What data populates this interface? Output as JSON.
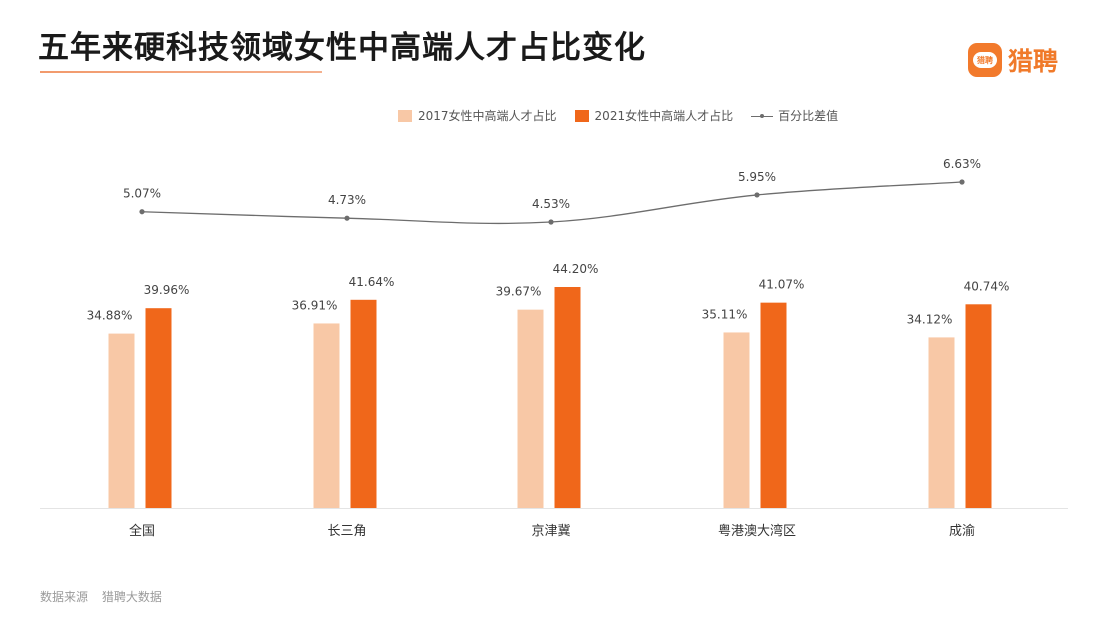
{
  "title": "五年来硬科技领域女性中高端人才占比变化",
  "logo": {
    "icon_text": "猎聘",
    "text": "猎聘",
    "icon": "chat-bubble-icon"
  },
  "source": {
    "label": "数据来源",
    "value": "猎聘大数据"
  },
  "colors": {
    "series_2017": "#f8c8a6",
    "series_2021": "#f0671a",
    "line": "#6d6d6d",
    "accent": "#f07a2a"
  },
  "chart_data": {
    "type": "bar",
    "categories": [
      "全国",
      "长三角",
      "京津冀",
      "粤港澳大湾区",
      "成渝"
    ],
    "series": [
      {
        "name": "2017女性中高端人才占比",
        "values": [
          34.88,
          36.91,
          39.67,
          35.11,
          34.12
        ],
        "labels": [
          "34.88%",
          "36.91%",
          "39.67%",
          "35.11%",
          "34.12%"
        ]
      },
      {
        "name": "2021女性中高端人才占比",
        "values": [
          39.96,
          41.64,
          44.2,
          41.07,
          40.74
        ],
        "labels": [
          "39.96%",
          "41.64%",
          "44.20%",
          "41.07%",
          "40.74%"
        ]
      }
    ],
    "line_series": {
      "name": "百分比差值",
      "type": "line",
      "values": [
        5.07,
        4.73,
        4.53,
        5.95,
        6.63
      ],
      "labels": [
        "5.07%",
        "4.73%",
        "4.53%",
        "5.95%",
        "6.63%"
      ]
    },
    "legend_position": "top",
    "grid": false,
    "title": "五年来硬科技领域女性中高端人才占比变化"
  }
}
